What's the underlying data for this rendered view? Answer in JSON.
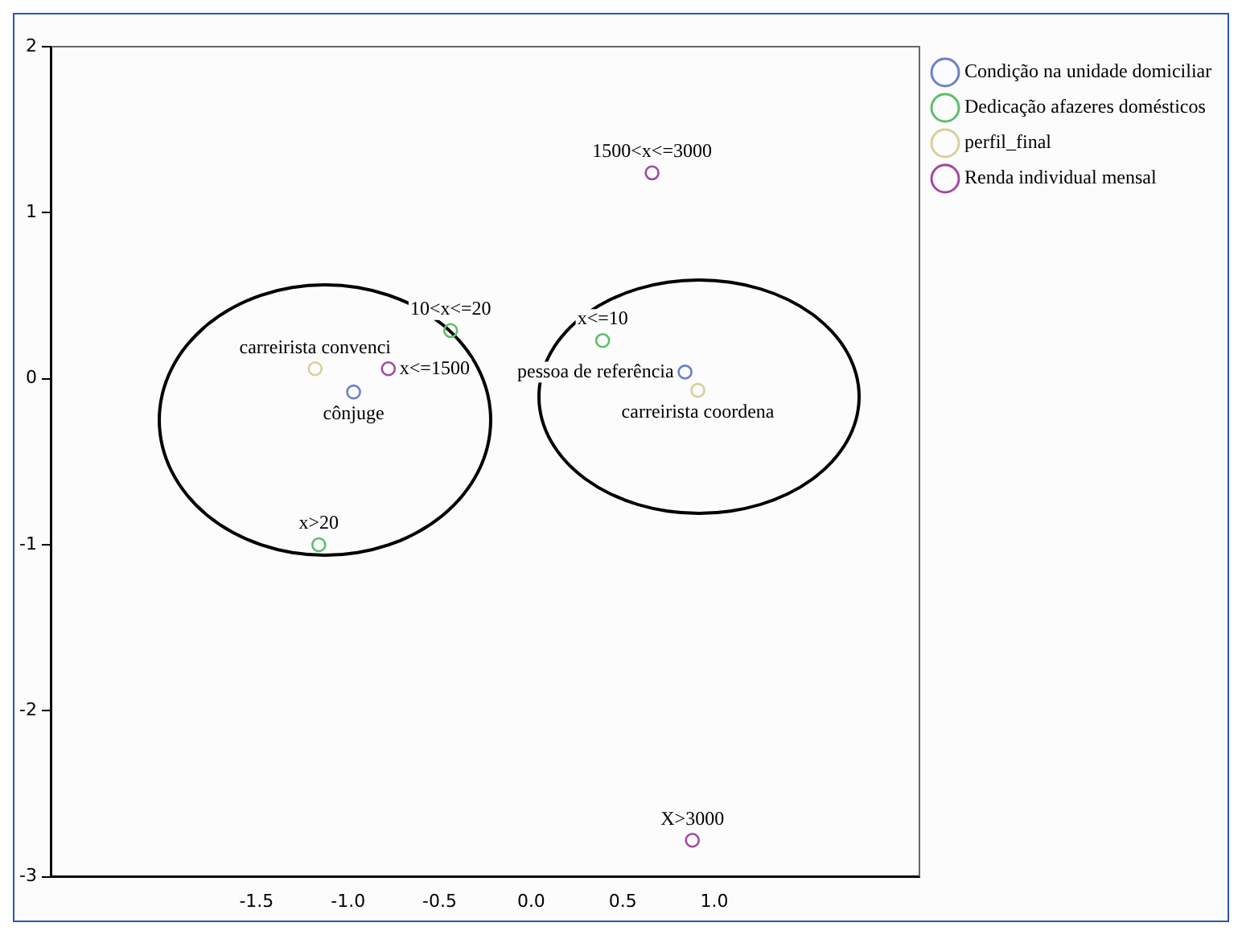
{
  "chart_data": {
    "type": "scatter",
    "marker": "circle",
    "grid": false,
    "legend": "top right",
    "xlim": [
      -2.62,
      2.12
    ],
    "ylim": [
      -3,
      2
    ],
    "xticks": [
      {
        "value": -1.5,
        "label": "-1.5"
      },
      {
        "value": -1,
        "label": "-1.0"
      },
      {
        "value": -0.5,
        "label": "-0.5"
      },
      {
        "value": 0,
        "label": "0.0"
      },
      {
        "value": 0.5,
        "label": "0.5"
      },
      {
        "value": 1,
        "label": "1.0"
      }
    ],
    "yticks": [
      -3,
      -2,
      -1,
      0,
      1,
      2
    ],
    "series": [
      {
        "name": "Condição na unidade domiciliar",
        "color": "#6a7fd0",
        "x": [
          -0.97,
          0.84
        ],
        "values": [
          -0.08,
          0.04
        ]
      },
      {
        "name": "Dedicação afazeres domésticos",
        "color": "#5cbf6a",
        "x": [
          -0.44,
          0.39,
          -1.16
        ],
        "values": [
          0.29,
          0.23,
          -1.0
        ]
      },
      {
        "name": "perfil_final",
        "color": "#d8d09a",
        "x": [
          -1.18,
          0.91
        ],
        "values": [
          0.06,
          -0.07
        ]
      },
      {
        "name": "Renda individual mensal",
        "color": "#a04aa0",
        "x": [
          -0.78,
          0.66,
          0.88
        ],
        "values": [
          0.06,
          1.24,
          -2.78
        ]
      }
    ],
    "annotations": [
      {
        "text": "cônjuge",
        "x": -0.97,
        "y": -0.08
      },
      {
        "text": "pessoa de referência",
        "x": 0.84,
        "y": 0.04
      },
      {
        "text": "10<x<=20",
        "x": -0.44,
        "y": 0.29
      },
      {
        "text": "x<=10",
        "x": 0.39,
        "y": 0.23
      },
      {
        "text": "x>20",
        "x": -1.16,
        "y": -1.0
      },
      {
        "text": "carreirista convenci",
        "x": -1.18,
        "y": 0.06
      },
      {
        "text": "carreirista coordena",
        "x": 0.91,
        "y": -0.07
      },
      {
        "text": "x<=1500",
        "x": -0.78,
        "y": 0.06
      },
      {
        "text": "1500<x<=3000",
        "x": 0.66,
        "y": 1.24
      },
      {
        "text": "X>3000",
        "x": 0.88,
        "y": -2.78
      }
    ]
  }
}
